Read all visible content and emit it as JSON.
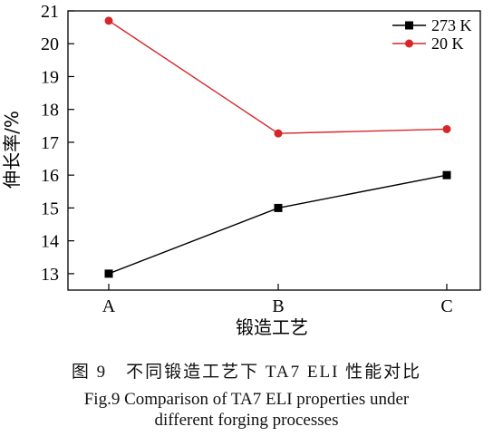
{
  "chart_data": {
    "type": "line",
    "categories": [
      "A",
      "B",
      "C"
    ],
    "series": [
      {
        "name": "273 K",
        "values": [
          13.0,
          15.0,
          16.0
        ],
        "color": "#000000",
        "marker": "square"
      },
      {
        "name": "20 K",
        "values": [
          20.7,
          17.27,
          17.4
        ],
        "color": "#d62728",
        "marker": "circle"
      }
    ],
    "xlabel": "锻造工艺",
    "ylabel": "伸长率/%",
    "ylim": [
      12.5,
      21
    ],
    "yticks": [
      "13",
      "14",
      "15",
      "16",
      "17",
      "18",
      "19",
      "20",
      "21"
    ],
    "legend_position": "top-right",
    "grid": false
  },
  "caption": {
    "cn": "图 9　不同锻造工艺下 TA7 ELI 性能对比",
    "en_line1": "Fig.9 Comparison of TA7 ELI properties under",
    "en_line2": "different forging processes"
  }
}
